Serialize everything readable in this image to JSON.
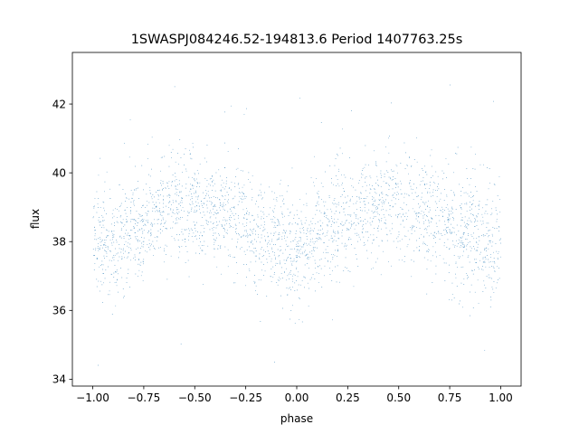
{
  "chart_data": {
    "type": "scatter",
    "title": "1SWASPJ084246.52-194813.6 Period 1407763.25s",
    "xlabel": "phase",
    "ylabel": "flux",
    "xlim": [
      -1.1,
      1.1
    ],
    "ylim": [
      33.8,
      43.5
    ],
    "x_ticks": [
      -1.0,
      -0.75,
      -0.5,
      -0.25,
      0.0,
      0.25,
      0.5,
      0.75,
      1.0
    ],
    "x_tick_labels": [
      "−1.00",
      "−0.75",
      "−0.50",
      "−0.25",
      "0.00",
      "0.25",
      "0.50",
      "0.75",
      "1.00"
    ],
    "y_ticks": [
      34,
      36,
      38,
      40,
      42
    ],
    "y_tick_labels": [
      "34",
      "36",
      "38",
      "40",
      "42"
    ],
    "grid": false,
    "marker_color": "#1f77b4",
    "series": [
      {
        "x_range": [
          -1.0,
          1.0
        ],
        "mean_curve": {
          "x": [
            -1.0,
            -0.9,
            -0.8,
            -0.7,
            -0.6,
            -0.5,
            -0.4,
            -0.3,
            -0.2,
            -0.1,
            0.0,
            0.1,
            0.2,
            0.3,
            0.4,
            0.5,
            0.6,
            0.7,
            0.8,
            0.9,
            1.0
          ],
          "y": [
            38.2,
            37.8,
            38.3,
            38.8,
            39.2,
            39.1,
            38.8,
            38.6,
            38.2,
            38.0,
            37.8,
            38.2,
            38.6,
            38.9,
            39.2,
            39.2,
            38.9,
            38.6,
            38.3,
            38.1,
            38.0
          ]
        },
        "scatter_sd": 0.75,
        "y_extent": [
          34.3,
          43.1
        ],
        "approx_points": 28000
      }
    ]
  }
}
